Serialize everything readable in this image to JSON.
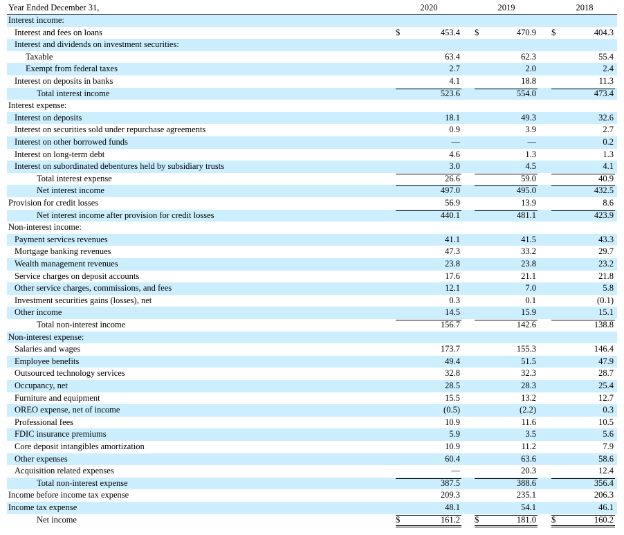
{
  "table": {
    "header": [
      "Year Ended December 31,",
      "2020",
      "2019",
      "2018"
    ],
    "rows": [
      {
        "label": "Interest income:",
        "values": []
      },
      {
        "label": "Interest and fees on loans",
        "currency": "$",
        "values": [
          "453.4",
          "470.9",
          "404.3"
        ]
      },
      {
        "label": "Interest and dividends on investment securities:",
        "values": []
      },
      {
        "label": "Taxable",
        "values": [
          "63.4",
          "62.3",
          "55.4"
        ]
      },
      {
        "label": "Exempt from federal taxes",
        "values": [
          "2.7",
          "2.0",
          "2.4"
        ]
      },
      {
        "label": "Interest on deposits in banks",
        "values": [
          "4.1",
          "18.8",
          "11.3"
        ]
      },
      {
        "label": "Total interest income",
        "values": [
          "523.6",
          "554.0",
          "473.4"
        ]
      },
      {
        "label": "Interest expense:",
        "values": []
      },
      {
        "label": "Interest on deposits",
        "values": [
          "18.1",
          "49.3",
          "32.6"
        ]
      },
      {
        "label": "Interest on securities sold under repurchase agreements",
        "values": [
          "0.9",
          "3.9",
          "2.7"
        ]
      },
      {
        "label": "Interest on other borrowed funds",
        "values": [
          "—",
          "—",
          "0.2"
        ]
      },
      {
        "label": "Interest on long-term debt",
        "values": [
          "4.6",
          "1.3",
          "1.3"
        ]
      },
      {
        "label": "Interest on subordinated debentures held by subsidiary trusts",
        "values": [
          "3.0",
          "4.5",
          "4.1"
        ]
      },
      {
        "label": "Total interest expense",
        "values": [
          "26.6",
          "59.0",
          "40.9"
        ]
      },
      {
        "label": "Net interest income",
        "values": [
          "497.0",
          "495.0",
          "432.5"
        ]
      },
      {
        "label": "Provision for credit losses",
        "values": [
          "56.9",
          "13.9",
          "8.6"
        ]
      },
      {
        "label": "Net interest income after provision for credit losses",
        "values": [
          "440.1",
          "481.1",
          "423.9"
        ]
      },
      {
        "label": "Non-interest income:",
        "values": []
      },
      {
        "label": "Payment services revenues",
        "values": [
          "41.1",
          "41.5",
          "43.3"
        ]
      },
      {
        "label": "Mortgage banking revenues",
        "values": [
          "47.3",
          "33.2",
          "29.7"
        ]
      },
      {
        "label": "Wealth management revenues",
        "values": [
          "23.8",
          "23.8",
          "23.2"
        ]
      },
      {
        "label": "Service charges on deposit accounts",
        "values": [
          "17.6",
          "21.1",
          "21.8"
        ]
      },
      {
        "label": "Other service charges, commissions, and fees",
        "values": [
          "12.1",
          "7.0",
          "5.8"
        ]
      },
      {
        "label": "Investment securities gains (losses), net",
        "values": [
          "0.3",
          "0.1",
          "(0.1)"
        ]
      },
      {
        "label": "Other income",
        "values": [
          "14.5",
          "15.9",
          "15.1"
        ]
      },
      {
        "label": "Total non-interest income",
        "values": [
          "156.7",
          "142.6",
          "138.8"
        ]
      },
      {
        "label": "Non-interest expense:",
        "values": []
      },
      {
        "label": "Salaries and wages",
        "values": [
          "173.7",
          "155.3",
          "146.4"
        ]
      },
      {
        "label": "Employee benefits",
        "values": [
          "49.4",
          "51.5",
          "47.9"
        ]
      },
      {
        "label": "Outsourced technology services",
        "values": [
          "32.8",
          "32.3",
          "28.7"
        ]
      },
      {
        "label": "Occupancy, net",
        "values": [
          "28.5",
          "28.3",
          "25.4"
        ]
      },
      {
        "label": "Furniture and equipment",
        "values": [
          "15.5",
          "13.2",
          "12.7"
        ]
      },
      {
        "label": "OREO expense, net of income",
        "values": [
          "(0.5)",
          "(2.2)",
          "0.3"
        ]
      },
      {
        "label": "Professional fees",
        "values": [
          "10.9",
          "11.6",
          "10.5"
        ]
      },
      {
        "label": "FDIC insurance premiums",
        "values": [
          "5.9",
          "3.5",
          "5.6"
        ]
      },
      {
        "label": "Core deposit intangibles amortization",
        "values": [
          "10.9",
          "11.2",
          "7.9"
        ]
      },
      {
        "label": "Other expenses",
        "values": [
          "60.4",
          "63.6",
          "58.6"
        ]
      },
      {
        "label": "Acquisition related expenses",
        "values": [
          "—",
          "20.3",
          "12.4"
        ]
      },
      {
        "label": "Total non-interest expense",
        "values": [
          "387.5",
          "388.6",
          "356.4"
        ]
      },
      {
        "label": "Income before income tax expense",
        "values": [
          "209.3",
          "235.1",
          "206.3"
        ]
      },
      {
        "label": "Income tax expense",
        "values": [
          "48.1",
          "54.1",
          "46.1"
        ]
      },
      {
        "label": "Net income",
        "currency": "$",
        "values": [
          "161.2",
          "181.0",
          "160.2"
        ]
      }
    ]
  }
}
